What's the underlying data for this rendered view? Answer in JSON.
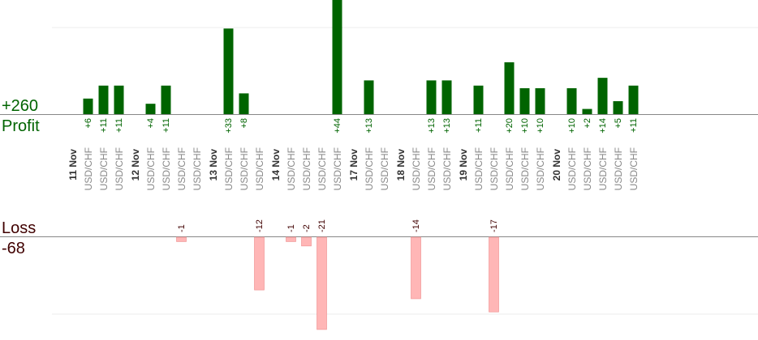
{
  "summary": {
    "profit_total": "+260",
    "profit_label": "Profit",
    "loss_label": "Loss",
    "loss_total": "-68"
  },
  "colors": {
    "profit_bar": "#006400",
    "loss_bar": "#ffb6b6",
    "profit_text": "#006400",
    "loss_text": "#400000",
    "date_text": "#333333",
    "pair_text": "#888888"
  },
  "chart_data": {
    "type": "bar",
    "title": "",
    "xlabel": "",
    "ylabel": "",
    "grid": true,
    "profit_scale_max": 44,
    "loss_scale_max": 21,
    "groups": [
      {
        "date": "11 Nov",
        "trades": [
          {
            "pair": "USD/CHF",
            "value": 6,
            "label": "+6"
          },
          {
            "pair": "USD/CHF",
            "value": 11,
            "label": "+11"
          },
          {
            "pair": "USD/CHF",
            "value": 11,
            "label": "+11"
          }
        ]
      },
      {
        "date": "12 Nov",
        "trades": [
          {
            "pair": "USD/CHF",
            "value": 4,
            "label": "+4"
          },
          {
            "pair": "USD/CHF",
            "value": 11,
            "label": "+11"
          },
          {
            "pair": "USD/CHF",
            "value": -1,
            "label": "-1"
          },
          {
            "pair": "USD/CHF",
            "value": null,
            "label": ""
          }
        ]
      },
      {
        "date": "13 Nov",
        "trades": [
          {
            "pair": "USD/CHF",
            "value": 33,
            "label": "+33"
          },
          {
            "pair": "USD/CHF",
            "value": 8,
            "label": "+8"
          },
          {
            "pair": "USD/CHF",
            "value": -12,
            "label": "-12"
          }
        ]
      },
      {
        "date": "14 Nov",
        "trades": [
          {
            "pair": "USD/CHF",
            "value": -1,
            "label": "-1"
          },
          {
            "pair": "USD/CHF",
            "value": -2,
            "label": "-2"
          },
          {
            "pair": "USD/CHF",
            "value": -21,
            "label": "-21"
          },
          {
            "pair": "USD/CHF",
            "value": 44,
            "label": "+44"
          }
        ]
      },
      {
        "date": "17 Nov",
        "trades": [
          {
            "pair": "USD/CHF",
            "value": 13,
            "label": "+13"
          },
          {
            "pair": "USD/CHF",
            "value": null,
            "label": ""
          }
        ]
      },
      {
        "date": "18 Nov",
        "trades": [
          {
            "pair": "USD/CHF",
            "value": -14,
            "label": "-14"
          },
          {
            "pair": "USD/CHF",
            "value": 13,
            "label": "+13"
          },
          {
            "pair": "USD/CHF",
            "value": 13,
            "label": "+13"
          }
        ]
      },
      {
        "date": "19 Nov",
        "trades": [
          {
            "pair": "USD/CHF",
            "value": 11,
            "label": "+11"
          },
          {
            "pair": "USD/CHF",
            "value": -17,
            "label": "-17"
          },
          {
            "pair": "USD/CHF",
            "value": 20,
            "label": "+20"
          },
          {
            "pair": "USD/CHF",
            "value": 10,
            "label": "+10"
          },
          {
            "pair": "USD/CHF",
            "value": 10,
            "label": "+10"
          }
        ]
      },
      {
        "date": "20 Nov",
        "trades": [
          {
            "pair": "USD/CHF",
            "value": 10,
            "label": "+10"
          },
          {
            "pair": "USD/CHF",
            "value": 2,
            "label": "+2"
          },
          {
            "pair": "USD/CHF",
            "value": 14,
            "label": "+14"
          },
          {
            "pair": "USD/CHF",
            "value": 5,
            "label": "+5"
          },
          {
            "pair": "USD/CHF",
            "value": 11,
            "label": "+11"
          }
        ]
      }
    ]
  }
}
